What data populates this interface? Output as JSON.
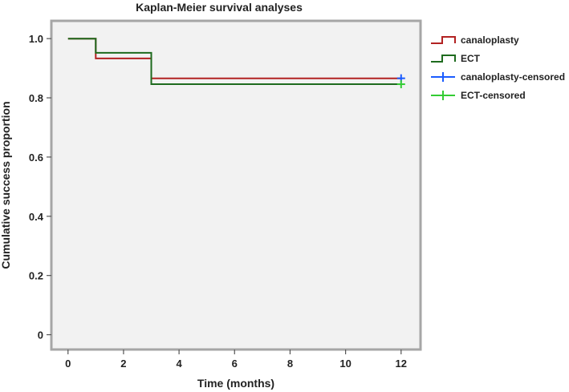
{
  "chart_data": {
    "type": "line",
    "step": true,
    "title": "Kaplan-Meier survival analyses",
    "xlabel": "Time (months)",
    "ylabel": "Cumulative success proportion",
    "xlim": [
      -0.6,
      12.7
    ],
    "ylim": [
      -0.05,
      1.06
    ],
    "xticks": [
      0,
      2,
      4,
      6,
      8,
      10,
      12
    ],
    "xtick_labels": [
      "0",
      "2",
      "4",
      "6",
      "8",
      "10",
      "12"
    ],
    "yticks": [
      0,
      0.2,
      0.4,
      0.6,
      0.8,
      1.0
    ],
    "ytick_labels": [
      "0",
      "0.2",
      "0.4",
      "0.6",
      "0.8",
      "1.0"
    ],
    "grid": false,
    "plot_background": "#f2f2f2",
    "legend_position": "right",
    "series": [
      {
        "name": "canaloplasty",
        "color": "#b22222",
        "x": [
          0,
          1,
          1,
          3,
          3,
          12
        ],
        "y": [
          1.0,
          1.0,
          0.933,
          0.933,
          0.866,
          0.866
        ]
      },
      {
        "name": "ECT",
        "color": "#1e6b1e",
        "x": [
          0,
          1,
          1,
          3,
          3,
          12
        ],
        "y": [
          1.0,
          1.0,
          0.952,
          0.952,
          0.846,
          0.846
        ]
      }
    ],
    "censored": [
      {
        "name": "canaloplasty-censored",
        "color": "#1a5cff",
        "x": [
          12
        ],
        "y": [
          0.866
        ]
      },
      {
        "name": "ECT-censored",
        "color": "#33cc33",
        "x": [
          12
        ],
        "y": [
          0.846
        ]
      }
    ]
  }
}
